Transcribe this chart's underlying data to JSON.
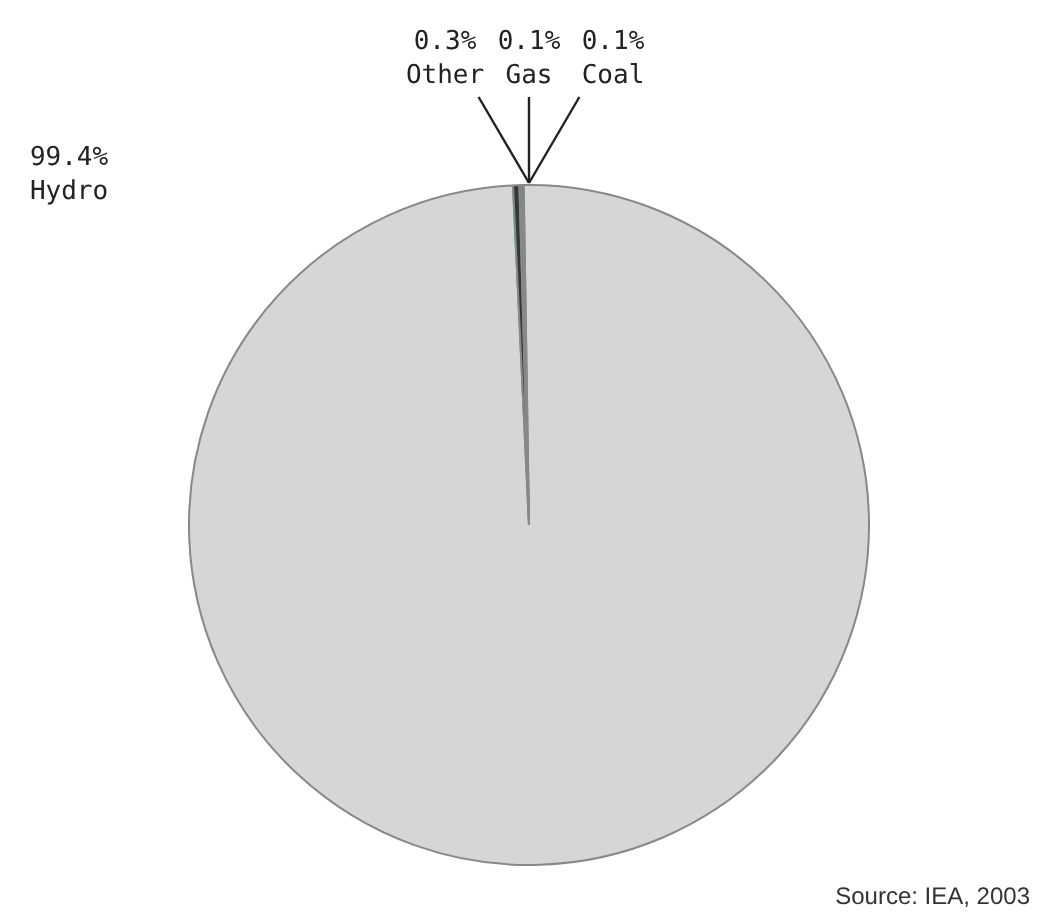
{
  "chart_data": {
    "type": "pie",
    "categories": [
      "Hydro",
      "Other",
      "Gas",
      "Coal"
    ],
    "values": [
      99.4,
      0.3,
      0.1,
      0.1
    ],
    "colors": [
      "#d6d6d6",
      "#2f3a3a",
      "#3a4646",
      "#253030"
    ],
    "value_labels": [
      "99.4%",
      "0.3%",
      "0.1%",
      "0.1%"
    ],
    "legend": false,
    "annotations": [
      "Source: IEA, 2003"
    ]
  }
}
